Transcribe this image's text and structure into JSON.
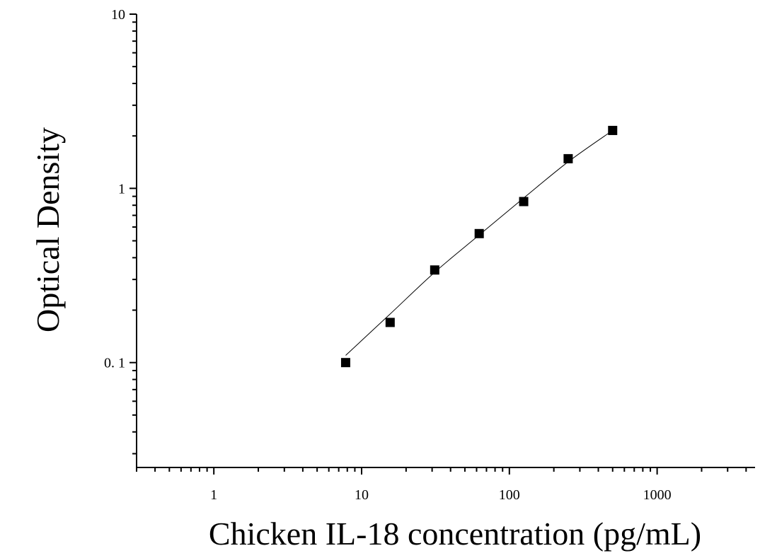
{
  "chart_data": {
    "type": "scatter",
    "xlabel": "Chicken IL-18 concentration (pg/mL)",
    "ylabel": "Optical Density",
    "x_scale": "log",
    "y_scale": "log",
    "xlim": [
      0.3,
      4600
    ],
    "ylim": [
      0.025,
      10
    ],
    "x_ticks": [
      {
        "value": 1,
        "label": "1"
      },
      {
        "value": 10,
        "label": "10"
      },
      {
        "value": 100,
        "label": "100"
      },
      {
        "value": 1000,
        "label": "1000"
      }
    ],
    "y_ticks": [
      {
        "value": 0.1,
        "label": "0. 1"
      },
      {
        "value": 1,
        "label": "1"
      },
      {
        "value": 10,
        "label": "10"
      }
    ],
    "grid": false,
    "series": [
      {
        "marker": "square",
        "color": "#000000",
        "x": [
          7.8,
          15.6,
          31.25,
          62.5,
          125,
          250,
          500
        ],
        "y": [
          0.1,
          0.17,
          0.34,
          0.55,
          0.84,
          1.48,
          2.15
        ]
      }
    ],
    "fit_curve": {
      "color": "#000000",
      "x": [
        7.8,
        15.6,
        31.25,
        62.5,
        125,
        250,
        500
      ],
      "y": [
        0.11,
        0.19,
        0.33,
        0.54,
        0.88,
        1.42,
        2.15
      ]
    }
  }
}
